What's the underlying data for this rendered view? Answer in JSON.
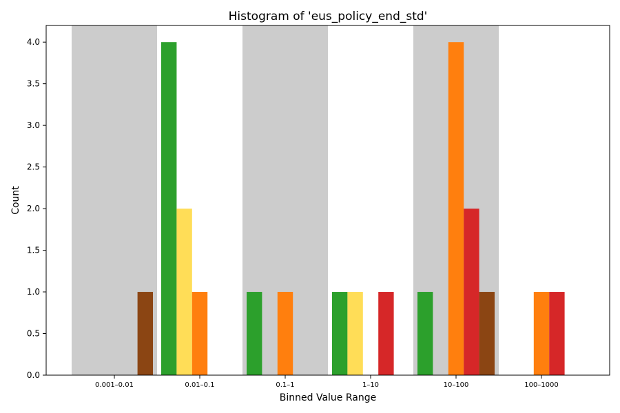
{
  "chart_data": {
    "type": "bar",
    "title": "Histogram of 'eus_policy_end_std'",
    "xlabel": "Binned Value Range",
    "ylabel": "Count",
    "ylim": [
      0,
      4.2
    ],
    "yticks": [
      "0.0",
      "0.5",
      "1.0",
      "1.5",
      "2.0",
      "2.5",
      "3.0",
      "3.5",
      "4.0"
    ],
    "categories": [
      "0.001–0.01",
      "0.01–0.1",
      "0.1–1",
      "1–10",
      "10–100",
      "100–1000"
    ],
    "shaded_bins": [
      0,
      2,
      4
    ],
    "series": [
      {
        "name": "green",
        "color": "#2ca02c",
        "values": [
          0,
          4,
          1,
          1,
          1,
          0
        ]
      },
      {
        "name": "yellow",
        "color": "#ffdd57",
        "values": [
          0,
          2,
          0,
          1,
          0,
          0
        ]
      },
      {
        "name": "orange",
        "color": "#ff7f0e",
        "values": [
          0,
          1,
          1,
          0,
          4,
          1
        ]
      },
      {
        "name": "red",
        "color": "#d62728",
        "values": [
          0,
          0,
          0,
          1,
          2,
          1
        ]
      },
      {
        "name": "brown",
        "color": "#8b4513",
        "values": [
          1,
          0,
          0,
          0,
          1,
          0
        ]
      }
    ],
    "shade_color": "#cccccc",
    "grid": false
  }
}
